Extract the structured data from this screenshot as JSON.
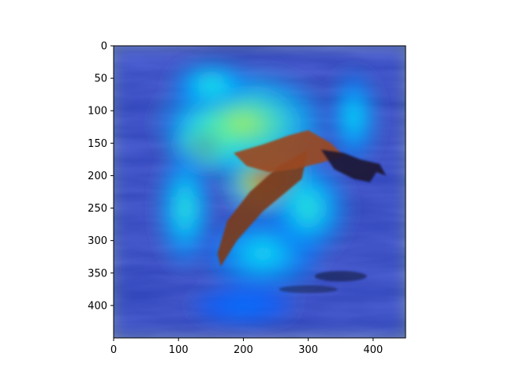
{
  "chart_data": {
    "type": "heatmap",
    "title": "",
    "xlabel": "",
    "ylabel": "",
    "xlim": [
      0,
      450
    ],
    "ylim": [
      450,
      0
    ],
    "grid": false,
    "x_ticks": [
      0,
      100,
      200,
      300,
      400
    ],
    "y_ticks": [
      0,
      50,
      100,
      150,
      200,
      250,
      300,
      350,
      400
    ],
    "background_image": "bird in flight over ocean waves",
    "colormap": "jet",
    "overlay_alpha": 0.5,
    "heat_blobs": [
      {
        "x": 145,
        "y": 150,
        "rx": 55,
        "ry": 45,
        "intensity": 1.0
      },
      {
        "x": 240,
        "y": 205,
        "rx": 70,
        "ry": 55,
        "intensity": 0.95
      },
      {
        "x": 200,
        "y": 120,
        "rx": 130,
        "ry": 80,
        "intensity": 0.6
      },
      {
        "x": 150,
        "y": 60,
        "rx": 60,
        "ry": 35,
        "intensity": 0.45
      },
      {
        "x": 370,
        "y": 110,
        "rx": 35,
        "ry": 70,
        "intensity": 0.4
      },
      {
        "x": 110,
        "y": 250,
        "rx": 40,
        "ry": 90,
        "intensity": 0.45
      },
      {
        "x": 230,
        "y": 320,
        "rx": 90,
        "ry": 60,
        "intensity": 0.4
      },
      {
        "x": 300,
        "y": 250,
        "rx": 60,
        "ry": 70,
        "intensity": 0.45
      },
      {
        "x": 200,
        "y": 400,
        "rx": 80,
        "ry": 30,
        "intensity": 0.25
      }
    ],
    "colors": {
      "ocean": "#4a5e86",
      "bird_body": "#7a3a1e",
      "bird_head": "#1a1830"
    }
  }
}
